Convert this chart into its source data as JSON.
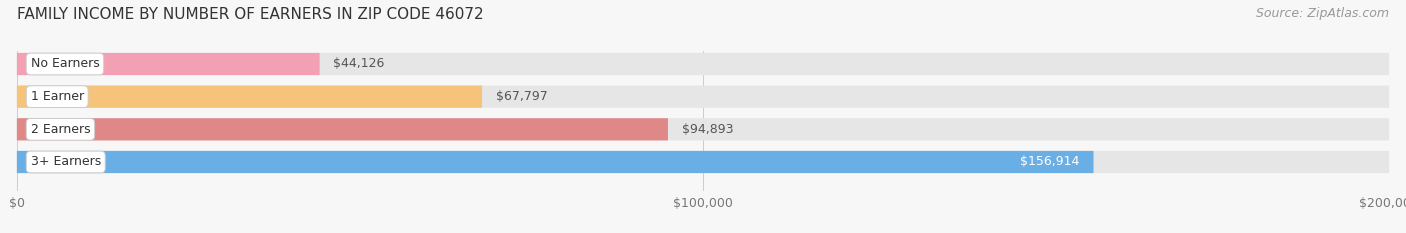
{
  "title": "FAMILY INCOME BY NUMBER OF EARNERS IN ZIP CODE 46072",
  "source": "Source: ZipAtlas.com",
  "categories": [
    "No Earners",
    "1 Earner",
    "2 Earners",
    "3+ Earners"
  ],
  "values": [
    44126,
    67797,
    94893,
    156914
  ],
  "bar_colors": [
    "#f4a0b4",
    "#f5c47a",
    "#e08888",
    "#6aaee6"
  ],
  "label_colors": [
    "#555555",
    "#555555",
    "#555555",
    "#ffffff"
  ],
  "xlim": [
    0,
    200000
  ],
  "background_color": "#f7f7f7",
  "bar_bg_color": "#e6e6e6",
  "title_fontsize": 11,
  "source_fontsize": 9,
  "tick_fontsize": 9,
  "label_fontsize": 9,
  "value_fontsize": 9
}
